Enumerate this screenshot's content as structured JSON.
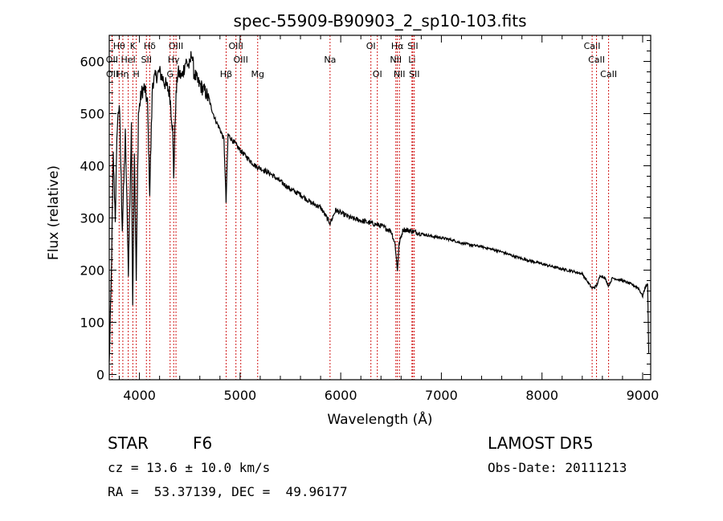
{
  "chart_data": {
    "type": "line",
    "title": "spec-55909-B90903_2_sp10-103.fits",
    "xlabel": "Wavelength (Å)",
    "ylabel": "Flux (relative)",
    "xlim": [
      3700,
      9080
    ],
    "ylim": [
      -10,
      650
    ],
    "xticks": [
      4000,
      5000,
      6000,
      7000,
      8000,
      9000
    ],
    "yticks": [
      0,
      100,
      200,
      300,
      400,
      500,
      600
    ],
    "line_color": "#000000",
    "marker_color": "#cc0000",
    "spectral_lines": [
      {
        "label": "Hθ",
        "wavelength": 3798,
        "row": 0
      },
      {
        "label": "K",
        "wavelength": 3934,
        "row": 0
      },
      {
        "label": "Hδ",
        "wavelength": 4102,
        "row": 0
      },
      {
        "label": "OIII",
        "wavelength": 4363,
        "row": 0
      },
      {
        "label": "OIII",
        "wavelength": 4959,
        "row": 0
      },
      {
        "label": "OI",
        "wavelength": 6300,
        "row": 0
      },
      {
        "label": "Hα",
        "wavelength": 6563,
        "row": 0
      },
      {
        "label": "SII",
        "wavelength": 6716,
        "row": 0
      },
      {
        "label": "CaII",
        "wavelength": 8498,
        "row": 0
      },
      {
        "label": "OII",
        "wavelength": 3727,
        "row": 1
      },
      {
        "label": "HeI",
        "wavelength": 3889,
        "row": 1
      },
      {
        "label": "SII",
        "wavelength": 4069,
        "row": 1
      },
      {
        "label": "Hγ",
        "wavelength": 4340,
        "row": 1
      },
      {
        "label": "OIII",
        "wavelength": 5007,
        "row": 1
      },
      {
        "label": "NII",
        "wavelength": 6548,
        "row": 1
      },
      {
        "label": "Li",
        "wavelength": 6708,
        "row": 1
      },
      {
        "label": "CaII",
        "wavelength": 8542,
        "row": 1
      },
      {
        "label": "OII",
        "wavelength": 3729,
        "row": 2
      },
      {
        "label": "Hη",
        "wavelength": 3835,
        "row": 2
      },
      {
        "label": "H",
        "wavelength": 3969,
        "row": 2
      },
      {
        "label": "G",
        "wavelength": 4305,
        "row": 2
      },
      {
        "label": "Hβ",
        "wavelength": 4861,
        "row": 2
      },
      {
        "label": "Mg",
        "wavelength": 5175,
        "row": 2
      },
      {
        "label": "Na",
        "wavelength": 5894,
        "row": 1
      },
      {
        "label": "OI",
        "wavelength": 6364,
        "row": 2
      },
      {
        "label": "NII",
        "wavelength": 6583,
        "row": 2
      },
      {
        "label": "SII",
        "wavelength": 6731,
        "row": 2
      },
      {
        "label": "CaII",
        "wavelength": 8662,
        "row": 2
      }
    ],
    "series": [
      {
        "x": [
          3700,
          3720,
          3740,
          3760,
          3780,
          3800,
          3830,
          3860,
          3890,
          3920,
          3933,
          3950,
          3968,
          3990,
          4020,
          4050,
          4080,
          4102,
          4130,
          4160,
          4200,
          4250,
          4300,
          4330,
          4340,
          4360,
          4380,
          4420,
          4460,
          4500,
          4520,
          4540,
          4580,
          4620,
          4660,
          4700,
          4750,
          4800,
          4840,
          4861,
          4880,
          4920,
          4960,
          5000,
          5050,
          5100,
          5150,
          5200,
          5250,
          5300,
          5400,
          5500,
          5600,
          5700,
          5800,
          5894,
          5950,
          6000,
          6100,
          6200,
          6300,
          6400,
          6500,
          6540,
          6563,
          6580,
          6620,
          6700,
          6800,
          6900,
          7000,
          7100,
          7200,
          7300,
          7400,
          7500,
          7600,
          7700,
          7800,
          7900,
          8000,
          8100,
          8200,
          8300,
          8400,
          8498,
          8542,
          8580,
          8620,
          8662,
          8700,
          8800,
          8900,
          8960,
          9000,
          9030,
          9050,
          9060
        ],
        "y": [
          20,
          180,
          420,
          300,
          480,
          520,
          280,
          460,
          200,
          470,
          140,
          430,
          180,
          500,
          540,
          550,
          520,
          350,
          560,
          570,
          580,
          560,
          540,
          470,
          380,
          520,
          580,
          570,
          600,
          590,
          620,
          580,
          560,
          550,
          540,
          520,
          490,
          470,
          450,
          330,
          460,
          450,
          440,
          430,
          420,
          410,
          400,
          395,
          390,
          385,
          370,
          355,
          345,
          330,
          320,
          290,
          315,
          310,
          300,
          295,
          290,
          285,
          275,
          250,
          200,
          250,
          278,
          275,
          270,
          265,
          262,
          258,
          252,
          248,
          245,
          240,
          235,
          228,
          222,
          217,
          212,
          207,
          202,
          198,
          193,
          165,
          170,
          190,
          186,
          170,
          185,
          180,
          172,
          165,
          150,
          170,
          172,
          40
        ]
      }
    ]
  },
  "info": {
    "object_type": "STAR",
    "subclass": "F6",
    "survey": "LAMOST DR5",
    "cz": "cz = 13.6 ± 10.0 km/s",
    "obs_date": "Obs-Date: 20111213",
    "coords": "RA =  53.37139, DEC =  49.96177"
  }
}
